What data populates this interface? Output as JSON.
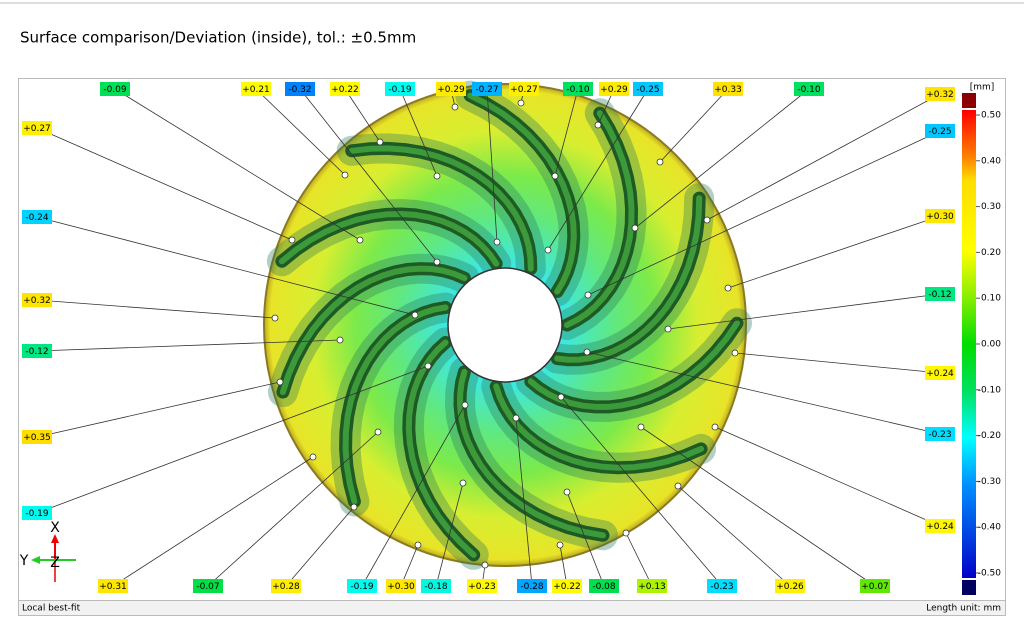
{
  "header": {
    "title": "Surface comparison/Deviation (inside), tol.: ±0.5mm"
  },
  "labels": [
    {
      "value": -0.09,
      "label": "-0.09"
    },
    {
      "value": 0.21,
      "label": "+0.21"
    },
    {
      "value": -0.32,
      "label": "-0.32"
    },
    {
      "value": 0.22,
      "label": "+0.22"
    },
    {
      "value": -0.19,
      "label": "-0.19"
    },
    {
      "value": 0.29,
      "label": "+0.29"
    },
    {
      "value": -0.27,
      "label": "-0.27"
    },
    {
      "value": 0.27,
      "label": "+0.27"
    },
    {
      "value": -0.1,
      "label": "-0.10"
    },
    {
      "value": 0.29,
      "label": "+0.29"
    },
    {
      "value": -0.25,
      "label": "-0.25"
    },
    {
      "value": 0.33,
      "label": "+0.33"
    },
    {
      "value": -0.1,
      "label": "-0.10"
    },
    {
      "value": 0.32,
      "label": "+0.32"
    },
    {
      "value": 0.27,
      "label": "+0.27"
    },
    {
      "value": -0.24,
      "label": "-0.24"
    },
    {
      "value": 0.32,
      "label": "+0.32"
    },
    {
      "value": -0.12,
      "label": "-0.12"
    },
    {
      "value": 0.35,
      "label": "+0.35"
    },
    {
      "value": -0.19,
      "label": "-0.19"
    },
    {
      "value": -0.25,
      "label": "-0.25"
    },
    {
      "value": 0.3,
      "label": "+0.30"
    },
    {
      "value": -0.12,
      "label": "-0.12"
    },
    {
      "value": 0.24,
      "label": "+0.24"
    },
    {
      "value": -0.23,
      "label": "-0.23"
    },
    {
      "value": 0.24,
      "label": "+0.24"
    },
    {
      "value": 0.31,
      "label": "+0.31"
    },
    {
      "value": -0.07,
      "label": "-0.07"
    },
    {
      "value": 0.28,
      "label": "+0.28"
    },
    {
      "value": -0.19,
      "label": "-0.19"
    },
    {
      "value": 0.3,
      "label": "+0.30"
    },
    {
      "value": -0.18,
      "label": "-0.18"
    },
    {
      "value": 0.23,
      "label": "+0.23"
    },
    {
      "value": -0.28,
      "label": "-0.28"
    },
    {
      "value": 0.22,
      "label": "+0.22"
    },
    {
      "value": -0.08,
      "label": "-0.08"
    },
    {
      "value": 0.13,
      "label": "+0.13"
    },
    {
      "value": -0.23,
      "label": "-0.23"
    },
    {
      "value": 0.26,
      "label": "+0.26"
    },
    {
      "value": 0.07,
      "label": "+0.07"
    }
  ],
  "scale": {
    "unit": "[mm]",
    "ticks": [
      {
        "value": 0.5,
        "label": "0.50"
      },
      {
        "value": 0.4,
        "label": "0.40"
      },
      {
        "value": 0.3,
        "label": "0.30"
      },
      {
        "value": 0.2,
        "label": "0.20"
      },
      {
        "value": 0.1,
        "label": "0.10"
      },
      {
        "value": 0,
        "label": "0.00"
      },
      {
        "value": -0.1,
        "label": "-0.10"
      },
      {
        "value": -0.2,
        "label": "-0.20"
      },
      {
        "value": -0.3,
        "label": "-0.30"
      },
      {
        "value": -0.4,
        "label": "-0.40"
      },
      {
        "value": -0.5,
        "label": "-0.50"
      }
    ]
  },
  "axes": {
    "x": "X",
    "y": "Y",
    "z": "Z"
  },
  "footer": {
    "left": "Local best-fit",
    "right": "Length unit: mm"
  }
}
